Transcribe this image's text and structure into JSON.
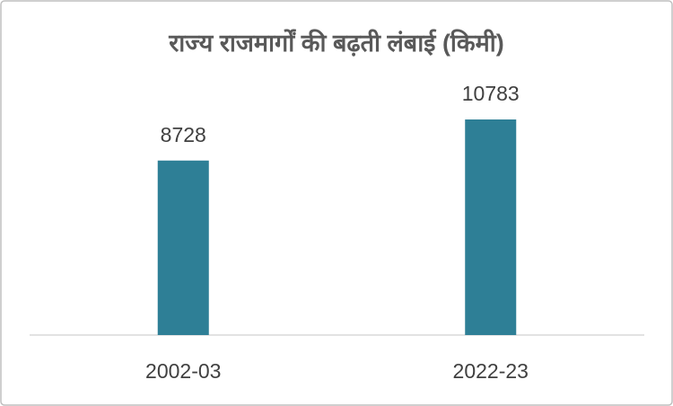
{
  "chart_data": {
    "type": "bar",
    "title": "राज्य राजमार्गों की बढ़ती लंबाई (किमी)",
    "categories": [
      "2002-03",
      "2022-23"
    ],
    "values": [
      8728,
      10783
    ],
    "color": "#2e7f96"
  }
}
